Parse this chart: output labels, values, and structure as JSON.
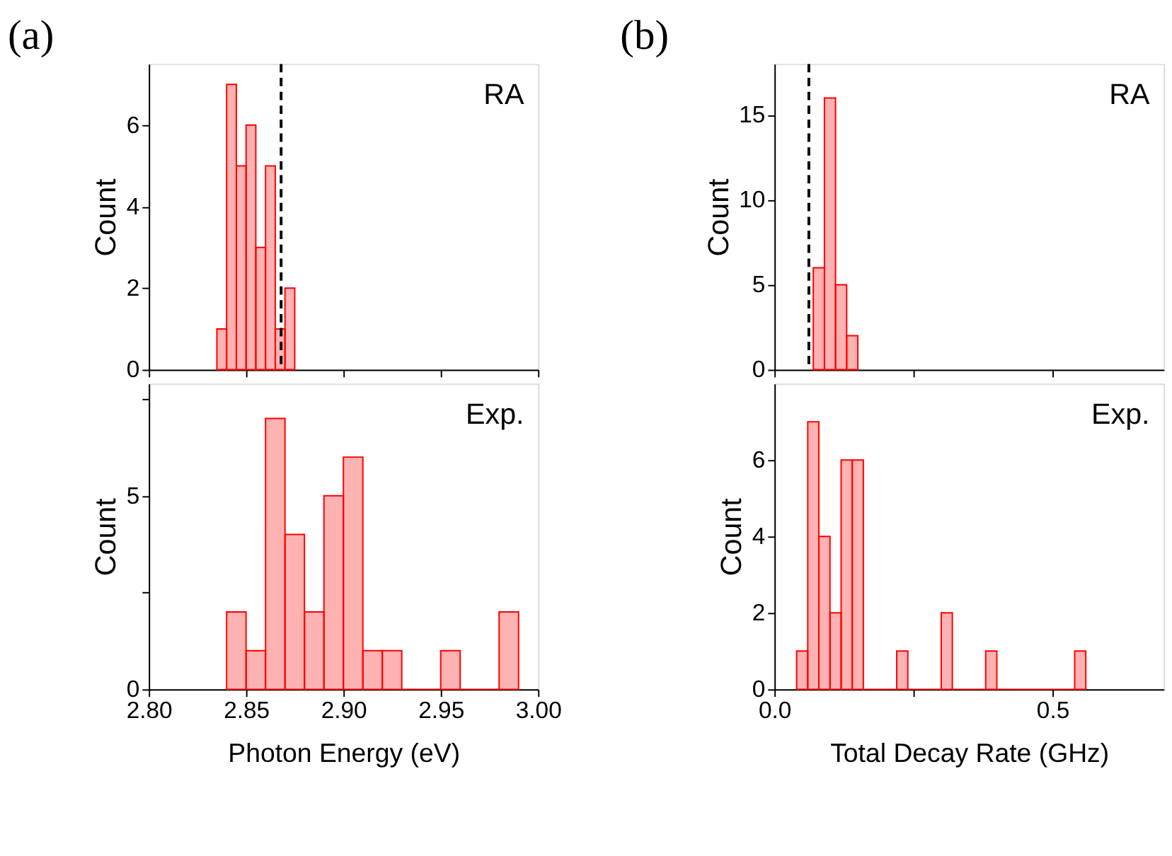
{
  "chart_data": [
    {
      "type": "histogram",
      "title": "(a)",
      "ylabel": "Count",
      "annotations": [
        "RA"
      ],
      "bins": [
        2.835,
        2.84,
        2.845,
        2.85,
        2.855,
        2.86,
        2.865,
        2.87,
        2.875
      ],
      "values": [
        1,
        7,
        5,
        6,
        3,
        5,
        1,
        2
      ],
      "color": "#ff0000",
      "xlim": [
        2.8,
        3.0
      ],
      "xticks": [
        2.8,
        2.85,
        2.9,
        2.95,
        3.0
      ],
      "ylim": [
        0,
        7.5
      ],
      "yticks": [
        0,
        2,
        4,
        6
      ],
      "tick_labels": "y",
      "grid": false,
      "ref_lines": [
        {
          "axis": "x",
          "value": 2.868,
          "line_style": "dashed",
          "color": "#000000"
        }
      ]
    },
    {
      "type": "histogram",
      "title": "(b)",
      "ylabel": "Count",
      "annotations": [
        "RA"
      ],
      "bins": [
        0.07,
        0.09,
        0.11,
        0.13,
        0.15
      ],
      "values": [
        6,
        16,
        5,
        2
      ],
      "color": "#ff0000",
      "xlim": [
        0,
        0.7
      ],
      "xticks": [
        0,
        0.25,
        0.5
      ],
      "ylim": [
        0,
        18
      ],
      "yticks": [
        0,
        5,
        10,
        15
      ],
      "tick_labels": "y",
      "grid": false,
      "ref_lines": [
        {
          "axis": "x",
          "value": 0.062,
          "line_style": "dashed",
          "color": "#000000"
        }
      ]
    },
    {
      "type": "histogram",
      "xlabel": "Photon Energy (eV)",
      "ylabel": "Count",
      "annotations": [
        "Exp."
      ],
      "bins": [
        2.84,
        2.85,
        2.86,
        2.87,
        2.88,
        2.89,
        2.9,
        2.91,
        2.92,
        2.93,
        2.94,
        2.95,
        2.96,
        2.97,
        2.98,
        2.99
      ],
      "values": [
        2,
        1,
        7,
        4,
        2,
        5,
        6,
        1,
        1,
        0,
        0,
        1,
        0,
        0,
        2
      ],
      "color": "#ff0000",
      "xlim": [
        2.8,
        3.0
      ],
      "xticks": [
        {
          "value": 2.8,
          "label": "2.80"
        },
        2.85,
        {
          "value": 2.9,
          "label": "2.90"
        },
        2.95,
        {
          "value": 3.0,
          "label": "3.00"
        }
      ],
      "ylim": [
        0,
        7.9
      ],
      "yticks": [
        0,
        {
          "value": 2.5,
          "label": null
        },
        5,
        {
          "value": 7.5,
          "label": null
        }
      ],
      "grid": false
    },
    {
      "type": "histogram",
      "xlabel": "Total Decay Rate (GHz)",
      "ylabel": "Count",
      "annotations": [
        "Exp."
      ],
      "bins": [
        0.04,
        0.06,
        0.08,
        0.1,
        0.12,
        0.14,
        0.16,
        0.18,
        0.2,
        0.22,
        0.24,
        0.26,
        0.28,
        0.3,
        0.32,
        0.34,
        0.36,
        0.38,
        0.4,
        0.42,
        0.44,
        0.46,
        0.48,
        0.5,
        0.52,
        0.54,
        0.56
      ],
      "values": [
        1,
        7,
        4,
        2,
        6,
        6,
        0,
        0,
        0,
        1,
        0,
        0,
        0,
        2,
        0,
        0,
        0,
        1,
        0,
        0,
        0,
        0,
        0,
        0,
        0,
        1
      ],
      "color": "#ff0000",
      "xlim": [
        0,
        0.7
      ],
      "xticks": [
        {
          "value": 0,
          "label": "0.0"
        },
        {
          "value": 0.25,
          "label": null
        },
        0.5
      ],
      "ylim": [
        0,
        8
      ],
      "yticks": [
        0,
        2,
        4,
        6
      ],
      "grid": false
    }
  ]
}
